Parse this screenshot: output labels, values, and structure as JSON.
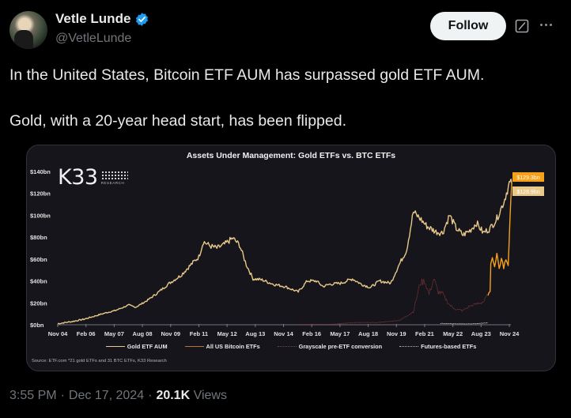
{
  "author": {
    "display_name": "Vetle Lunde",
    "handle": "@VetleLunde",
    "verified": true,
    "verified_color": "#1d9bf0"
  },
  "header_actions": {
    "follow_label": "Follow",
    "grok_icon": "grok-icon",
    "more_icon": "more-icon"
  },
  "tweet": {
    "paragraphs": [
      "In the United States, Bitcoin ETF AUM has surpassed gold ETF AUM.",
      "Gold, with a 20-year head start, has been flipped."
    ]
  },
  "chart_card": {
    "brand": "K33",
    "brand_sub": "RESEARCH",
    "source": "Source: ETF.com *21 gold ETFs and 31 BTC ETFs, K33 Research"
  },
  "chart_data": {
    "type": "line",
    "title": "Assets Under Management: Gold ETFs vs. BTC ETFs",
    "xlabel": "",
    "ylabel": "",
    "ylim": [
      0,
      140
    ],
    "y_ticks": [
      "$0bn",
      "$20bn",
      "$40bn",
      "$60bn",
      "$80bn",
      "$100bn",
      "$120bn",
      "$140bn"
    ],
    "x_ticks": [
      "Nov 04",
      "Feb 06",
      "May 07",
      "Aug 08",
      "Nov 09",
      "Feb 11",
      "May 12",
      "Aug 13",
      "Nov 14",
      "Feb 16",
      "May 17",
      "Aug 18",
      "Nov 19",
      "Feb 21",
      "May 22",
      "Aug 23",
      "Nov 24"
    ],
    "grid": false,
    "legend_position": "bottom",
    "annotations": [
      {
        "label": "$129.3bn",
        "series": "All US Bitcoin ETFs",
        "color": "#f7a11a"
      },
      {
        "label": "$128.9bn",
        "series": "Gold ETF AUM",
        "color": "#e8c98a"
      }
    ],
    "series": [
      {
        "name": "Gold ETF AUM",
        "color": "#e8c98a",
        "style": "solid",
        "x": [
          2004.85,
          2005.5,
          2006.0,
          2006.5,
          2007.0,
          2007.4,
          2008.0,
          2008.3,
          2008.8,
          2009.2,
          2009.8,
          2010.3,
          2010.8,
          2011.1,
          2011.3,
          2011.6,
          2011.9,
          2012.2,
          2012.6,
          2012.9,
          2013.2,
          2013.5,
          2013.9,
          2014.4,
          2014.9,
          2015.5,
          2015.9,
          2016.3,
          2016.6,
          2016.9,
          2017.4,
          2017.9,
          2018.3,
          2018.7,
          2019.1,
          2019.6,
          2019.9,
          2020.3,
          2020.6,
          2020.9,
          2021.2,
          2021.6,
          2021.9,
          2022.2,
          2022.5,
          2022.8,
          2023.1,
          2023.4,
          2023.7,
          2024.0,
          2024.3,
          2024.6,
          2024.85,
          2024.96
        ],
        "values": [
          1,
          3,
          5,
          8,
          11,
          13,
          18,
          16,
          22,
          28,
          38,
          45,
          56,
          62,
          76,
          72,
          70,
          73,
          79,
          73,
          55,
          42,
          41,
          37,
          35,
          30,
          40,
          40,
          35,
          37,
          38,
          42,
          37,
          34,
          40,
          38,
          52,
          68,
          103,
          97,
          90,
          85,
          84,
          100,
          88,
          82,
          86,
          93,
          84,
          88,
          97,
          112,
          129,
          128.9
        ]
      },
      {
        "name": "All US Bitcoin ETFs",
        "color": "#f7a11a",
        "style": "solid",
        "x": [
          2023.9,
          2024.0,
          2024.03,
          2024.1,
          2024.2,
          2024.3,
          2024.4,
          2024.5,
          2024.6,
          2024.7,
          2024.8,
          2024.88,
          2024.96
        ],
        "values": [
          27,
          30,
          58,
          62,
          52,
          64,
          50,
          62,
          52,
          60,
          55,
          95,
          129.3
        ]
      },
      {
        "name": "Grayscale pre-ETF conversion",
        "color": "#8a3a3a",
        "style": "dotted",
        "x": [
          2015.5,
          2017.0,
          2018.0,
          2019.0,
          2020.0,
          2020.6,
          2020.9,
          2021.1,
          2021.3,
          2021.5,
          2021.7,
          2021.9,
          2022.2,
          2022.5,
          2022.8,
          2023.1,
          2023.4,
          2023.7,
          2023.9
        ],
        "values": [
          0,
          0.5,
          2,
          2,
          4,
          12,
          38,
          40,
          28,
          42,
          30,
          28,
          18,
          14,
          13,
          17,
          19,
          21,
          27
        ]
      },
      {
        "name": "Futures-based ETFs",
        "color": "#e6e6e6",
        "style": "dotted",
        "x": [
          2021.8,
          2022.2,
          2022.8,
          2023.4,
          2023.9
        ],
        "values": [
          1.2,
          1.0,
          0.8,
          1.0,
          1.8
        ]
      }
    ]
  },
  "meta": {
    "time": "3:55 PM",
    "date": "Dec 17, 2024",
    "separator": "·",
    "views_count": "20.1K",
    "views_label": "Views"
  }
}
